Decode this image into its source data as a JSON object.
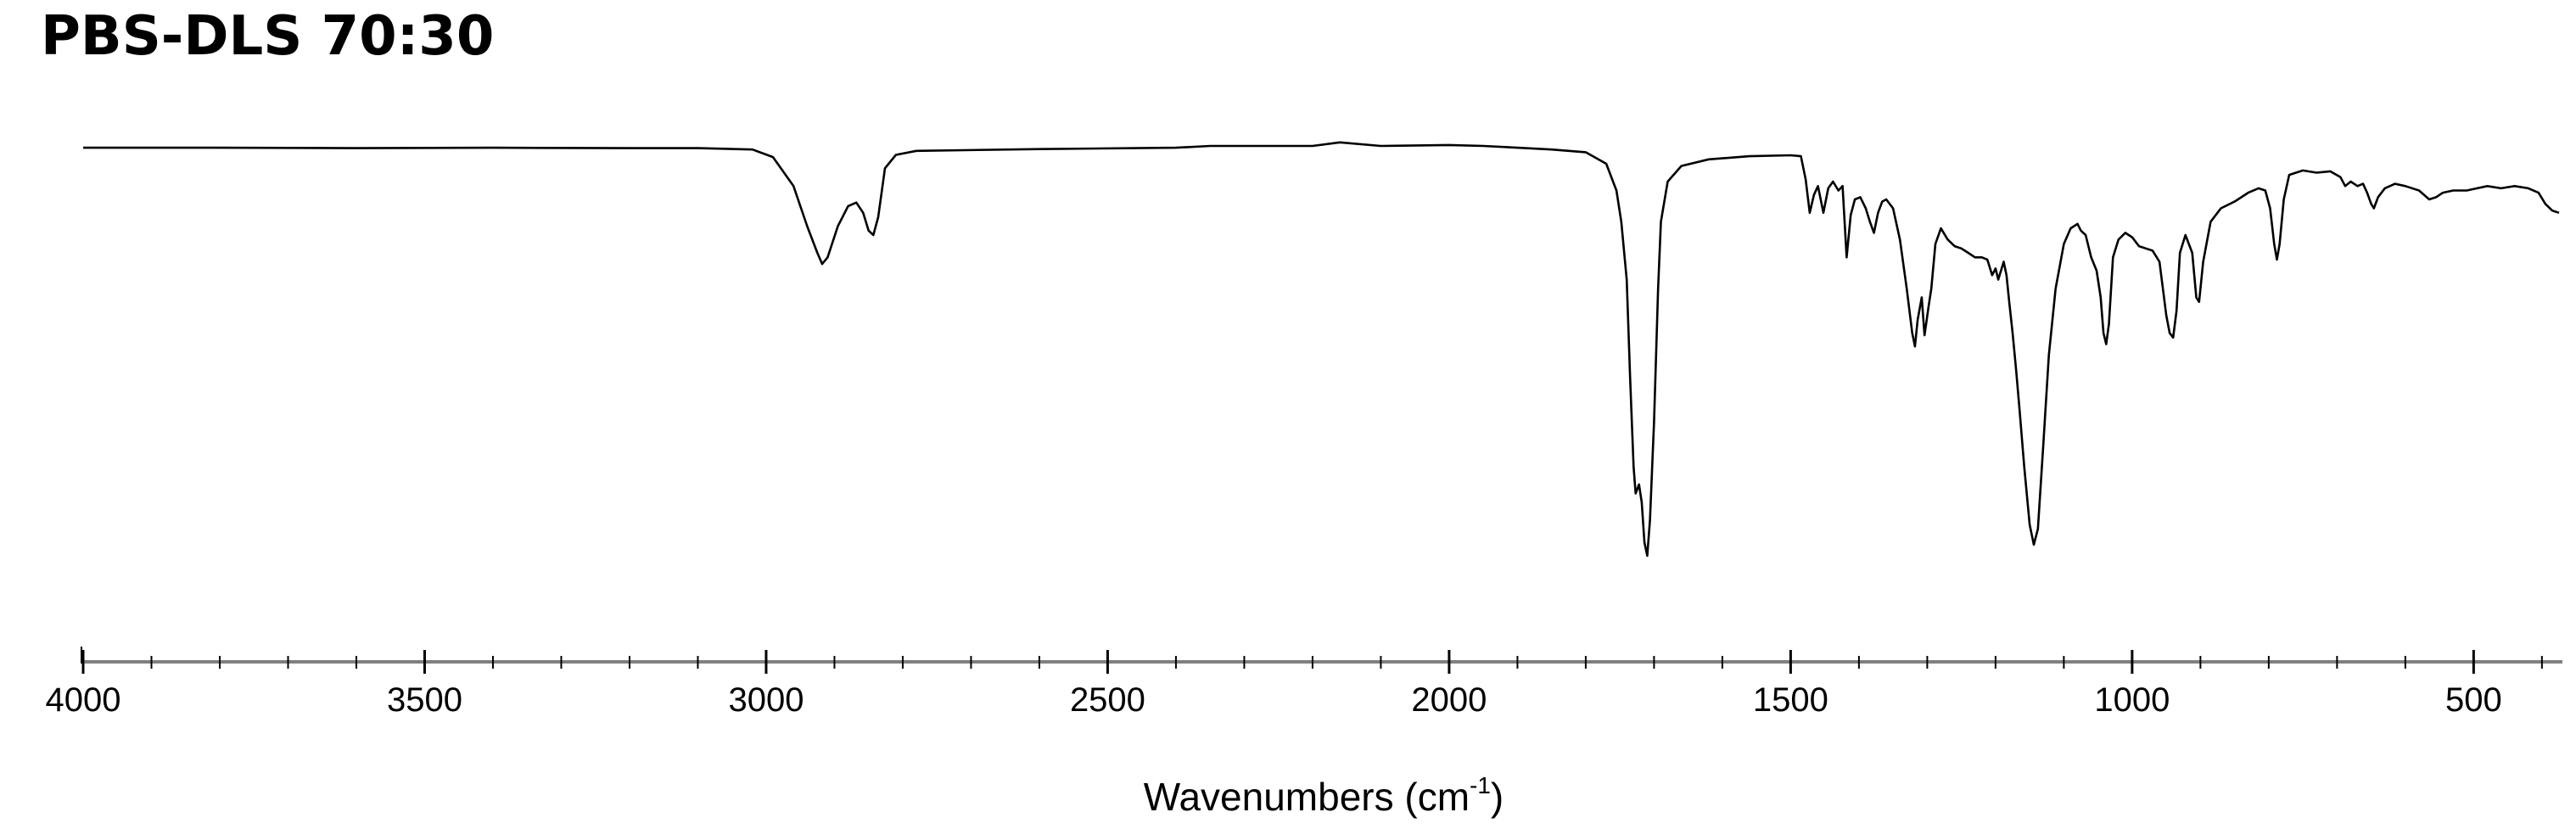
{
  "chart_data": {
    "type": "line",
    "title": "PBS-DLS 70:30",
    "xlabel": "Wavenumbers (cm",
    "xlabel_superscript": "-1",
    "xlabel_suffix": ")",
    "ylabel": "",
    "xlim": [
      4000,
      370
    ],
    "x_reversed": true,
    "y_axis_visible": false,
    "grid": false,
    "x_ticks": [
      4000,
      3500,
      3000,
      2500,
      2000,
      1500,
      1000,
      500
    ],
    "x_tick_labels": [
      "4000",
      "3500",
      "3000",
      "2500",
      "2000",
      "1500",
      "1000",
      "500"
    ],
    "y_units": "transmittance (arbitrary, unlabeled)",
    "ylim": [
      0,
      100
    ],
    "series": [
      {
        "color": "#000000",
        "points": [
          [
            4000,
            91.6
          ],
          [
            3800,
            91.6
          ],
          [
            3600,
            91.5
          ],
          [
            3400,
            91.6
          ],
          [
            3200,
            91.5
          ],
          [
            3100,
            91.5
          ],
          [
            3020,
            91.2
          ],
          [
            2990,
            89.5
          ],
          [
            2960,
            83.0
          ],
          [
            2940,
            74.0
          ],
          [
            2925,
            68.0
          ],
          [
            2918,
            65.5
          ],
          [
            2910,
            67.0
          ],
          [
            2895,
            74.0
          ],
          [
            2880,
            78.5
          ],
          [
            2868,
            79.3
          ],
          [
            2858,
            77.0
          ],
          [
            2850,
            73.0
          ],
          [
            2843,
            72.0
          ],
          [
            2836,
            76.0
          ],
          [
            2826,
            87.0
          ],
          [
            2810,
            90.0
          ],
          [
            2780,
            90.9
          ],
          [
            2600,
            91.3
          ],
          [
            2400,
            91.6
          ],
          [
            2350,
            92.0
          ],
          [
            2200,
            92.0
          ],
          [
            2160,
            92.8
          ],
          [
            2100,
            92.0
          ],
          [
            2000,
            92.2
          ],
          [
            1950,
            92.0
          ],
          [
            1900,
            91.6
          ],
          [
            1850,
            91.2
          ],
          [
            1800,
            90.6
          ],
          [
            1770,
            88.0
          ],
          [
            1755,
            82.0
          ],
          [
            1748,
            75.0
          ],
          [
            1740,
            62.0
          ],
          [
            1735,
            40.0
          ],
          [
            1730,
            20.0
          ],
          [
            1727,
            14.0
          ],
          [
            1722,
            16.0
          ],
          [
            1718,
            12.0
          ],
          [
            1714,
            3.0
          ],
          [
            1710,
            0.0
          ],
          [
            1706,
            8.0
          ],
          [
            1700,
            30.0
          ],
          [
            1694,
            60.0
          ],
          [
            1690,
            75.0
          ],
          [
            1680,
            84.0
          ],
          [
            1660,
            87.5
          ],
          [
            1620,
            89.0
          ],
          [
            1560,
            89.7
          ],
          [
            1500,
            89.9
          ],
          [
            1485,
            89.7
          ],
          [
            1478,
            84.5
          ],
          [
            1472,
            77.0
          ],
          [
            1466,
            81.0
          ],
          [
            1460,
            83.0
          ],
          [
            1452,
            77.0
          ],
          [
            1445,
            82.5
          ],
          [
            1438,
            84.0
          ],
          [
            1430,
            82.0
          ],
          [
            1424,
            83.0
          ],
          [
            1418,
            67.0
          ],
          [
            1412,
            76.5
          ],
          [
            1406,
            80.0
          ],
          [
            1398,
            80.5
          ],
          [
            1390,
            78.0
          ],
          [
            1384,
            75.0
          ],
          [
            1378,
            72.5
          ],
          [
            1372,
            77.0
          ],
          [
            1366,
            79.5
          ],
          [
            1360,
            80.0
          ],
          [
            1350,
            78.0
          ],
          [
            1340,
            71.0
          ],
          [
            1330,
            60.0
          ],
          [
            1322,
            50.0
          ],
          [
            1318,
            47.0
          ],
          [
            1314,
            53.0
          ],
          [
            1308,
            58.0
          ],
          [
            1304,
            49.5
          ],
          [
            1298,
            56.0
          ],
          [
            1294,
            60.0
          ],
          [
            1288,
            70.0
          ],
          [
            1280,
            73.5
          ],
          [
            1270,
            71.0
          ],
          [
            1260,
            69.5
          ],
          [
            1250,
            69.0
          ],
          [
            1240,
            68.0
          ],
          [
            1230,
            67.0
          ],
          [
            1220,
            67.0
          ],
          [
            1212,
            66.5
          ],
          [
            1205,
            63.0
          ],
          [
            1200,
            64.5
          ],
          [
            1196,
            62.0
          ],
          [
            1192,
            64.0
          ],
          [
            1188,
            66.0
          ],
          [
            1184,
            63.0
          ],
          [
            1180,
            57.0
          ],
          [
            1175,
            50.0
          ],
          [
            1170,
            42.0
          ],
          [
            1165,
            33.0
          ],
          [
            1158,
            20.0
          ],
          [
            1150,
            7.0
          ],
          [
            1144,
            2.5
          ],
          [
            1138,
            6.0
          ],
          [
            1130,
            25.0
          ],
          [
            1122,
            45.0
          ],
          [
            1112,
            60.0
          ],
          [
            1100,
            70.0
          ],
          [
            1090,
            73.5
          ],
          [
            1080,
            74.5
          ],
          [
            1075,
            73.0
          ],
          [
            1068,
            72.0
          ],
          [
            1060,
            67.0
          ],
          [
            1052,
            64.0
          ],
          [
            1046,
            58.0
          ],
          [
            1042,
            50.0
          ],
          [
            1038,
            47.5
          ],
          [
            1034,
            52.0
          ],
          [
            1028,
            67.0
          ],
          [
            1020,
            71.0
          ],
          [
            1010,
            72.5
          ],
          [
            1000,
            71.5
          ],
          [
            990,
            69.5
          ],
          [
            980,
            69.0
          ],
          [
            970,
            68.5
          ],
          [
            960,
            66.0
          ],
          [
            950,
            54.0
          ],
          [
            945,
            50.0
          ],
          [
            940,
            49.0
          ],
          [
            935,
            55.0
          ],
          [
            930,
            68.0
          ],
          [
            922,
            72.0
          ],
          [
            912,
            68.0
          ],
          [
            906,
            58.0
          ],
          [
            902,
            57.0
          ],
          [
            896,
            66.0
          ],
          [
            885,
            75.0
          ],
          [
            870,
            78.0
          ],
          [
            850,
            79.5
          ],
          [
            830,
            81.5
          ],
          [
            815,
            82.5
          ],
          [
            805,
            82.0
          ],
          [
            798,
            78.0
          ],
          [
            792,
            70.0
          ],
          [
            788,
            66.5
          ],
          [
            784,
            70.0
          ],
          [
            778,
            80.0
          ],
          [
            770,
            85.5
          ],
          [
            750,
            86.5
          ],
          [
            730,
            86.0
          ],
          [
            710,
            86.3
          ],
          [
            695,
            85.0
          ],
          [
            688,
            83.0
          ],
          [
            680,
            84.0
          ],
          [
            670,
            83.0
          ],
          [
            662,
            83.5
          ],
          [
            656,
            81.5
          ],
          [
            650,
            79.0
          ],
          [
            646,
            78.0
          ],
          [
            640,
            80.5
          ],
          [
            630,
            82.5
          ],
          [
            615,
            83.5
          ],
          [
            600,
            83.0
          ],
          [
            580,
            82.0
          ],
          [
            565,
            80.0
          ],
          [
            555,
            80.5
          ],
          [
            545,
            81.5
          ],
          [
            530,
            82.0
          ],
          [
            510,
            82.0
          ],
          [
            495,
            82.5
          ],
          [
            480,
            83.0
          ],
          [
            460,
            82.5
          ],
          [
            440,
            83.0
          ],
          [
            420,
            82.5
          ],
          [
            405,
            81.5
          ],
          [
            395,
            79.0
          ],
          [
            385,
            77.5
          ],
          [
            375,
            77.0
          ]
        ]
      }
    ]
  }
}
